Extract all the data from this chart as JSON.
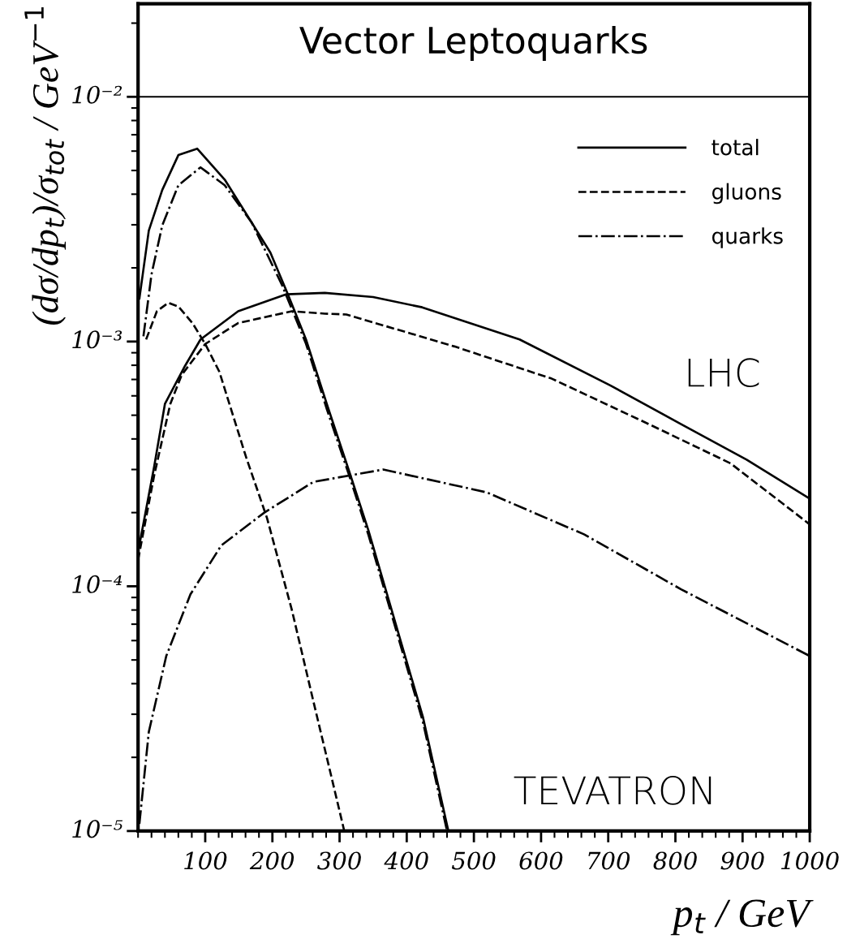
{
  "chart_data": {
    "type": "line",
    "title": "Vector Leptoquarks",
    "xlabel": "p$_{t}$ / GeV",
    "ylabel": "(dσ/dp$_{t}$)/σ$_{tot}$ / GeV$^{−1}$",
    "log": "y",
    "xlim": [
      0,
      1000
    ],
    "ylim": [
      1e-05,
      0.024
    ],
    "xticks": [
      100,
      200,
      300,
      400,
      500,
      600,
      700,
      800,
      900,
      1000
    ],
    "yticks": [
      {
        "value": 1e-05,
        "label": "10⁻⁵"
      },
      {
        "value": 0.0001,
        "label": "10⁻⁴"
      },
      {
        "value": 0.001,
        "label": "10⁻³"
      },
      {
        "value": 0.01,
        "label": "10⁻²"
      }
    ],
    "grid": false,
    "legend": "top right",
    "marker": "none",
    "ref_lines": [
      {
        "axis": "y",
        "value": 0.01,
        "color": "#000000",
        "line_style": "solid"
      }
    ],
    "annotations": [
      "LHC",
      "TEVATRON"
    ],
    "series": [
      {
        "name": "total",
        "color": "#000000",
        "line_style": "solid",
        "x": [
          2,
          16,
          36,
          60,
          88,
          129,
          169,
          197,
          223,
          250,
          281,
          315,
          343,
          388,
          424,
          462
        ],
        "values": [
          0.0015,
          0.00284,
          0.00416,
          0.00578,
          0.00614,
          0.00459,
          0.00307,
          0.00231,
          0.00156,
          0.00102,
          0.000556,
          0.000291,
          0.000169,
          6.38e-05,
          2.93e-05,
          1e-05
        ]
      },
      {
        "name": "gluons",
        "color": "#000000",
        "line_style": "dashed",
        "x": [
          12,
          28,
          45,
          60,
          81,
          100,
          121,
          136,
          161,
          192,
          229,
          261,
          288,
          307
        ],
        "values": [
          0.00102,
          0.00133,
          0.00144,
          0.00139,
          0.00119,
          0.000977,
          0.000753,
          0.000556,
          0.000336,
          0.00019,
          8e-05,
          3.39e-05,
          1.66e-05,
          1e-05
        ]
      },
      {
        "name": "quarks",
        "color": "#000000",
        "line_style": "dashdot",
        "x": [
          8,
          20,
          36,
          60,
          93,
          129,
          169,
          214,
          250,
          281,
          315,
          343,
          388,
          424,
          460
        ],
        "values": [
          0.00105,
          0.00188,
          0.00298,
          0.00435,
          0.00515,
          0.00435,
          0.00307,
          0.00171,
          0.00098,
          0.00053,
          0.00028,
          0.000162,
          6.1e-05,
          2.8e-05,
          1e-05
        ]
      },
      {
        "color": "#000000",
        "line_style": "solid",
        "x": [
          0,
          24,
          40,
          70,
          93,
          149,
          221,
          278,
          350,
          423,
          568,
          703,
          809,
          906,
          1000
        ],
        "values": [
          0.000138,
          0.000309,
          0.000556,
          0.000796,
          0.00102,
          0.00133,
          0.00156,
          0.00158,
          0.00152,
          0.00138,
          0.00102,
          0.000662,
          0.000459,
          0.000329,
          0.000228
        ]
      },
      {
        "color": "#000000",
        "line_style": "dashed",
        "x": [
          0,
          24,
          48,
          65,
          100,
          149,
          229,
          278,
          310,
          471,
          616,
          761,
          882,
          1000
        ],
        "values": [
          0.000128,
          0.000284,
          0.000556,
          0.000731,
          0.000977,
          0.00119,
          0.00133,
          0.0013,
          0.00129,
          0.000955,
          0.000705,
          0.000459,
          0.000318,
          0.000179
        ]
      },
      {
        "color": "#000000",
        "line_style": "dashdot",
        "x": [
          2,
          16,
          42,
          78,
          124,
          188,
          261,
          365,
          519,
          664,
          809,
          1000
        ],
        "values": [
          1.07e-05,
          2.54e-05,
          5.19e-05,
          9.27e-05,
          0.000147,
          0.0002,
          0.000267,
          0.0003,
          0.000242,
          0.000163,
          9.7e-05,
          5.19e-05
        ]
      }
    ]
  }
}
